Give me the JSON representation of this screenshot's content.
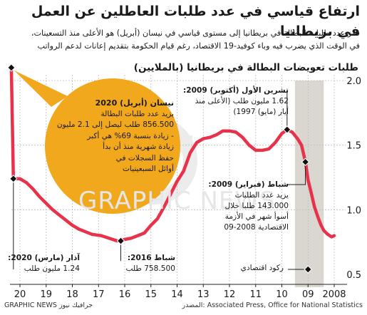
{
  "title": "ارتفاع قياسي في عدد طلبات العاطلين عن العمل في بريطانيا",
  "intro": [
    "قفز عدد طلبات البطالة في بريطانيا إلى مستوى قياسي في نيسان (أبريل) هو الأعلى منذ التسعينات،",
    "في الوقت الذي يضرب فيه وباء كوفيد-19 الاقتصاد، رغم قيام الحكومة بتقديم إعانات لدعم الرواتب"
  ],
  "subtitle": "طلبات تعويضات البطالة في بريطانيا (بالملايين)",
  "watermark": "GRAPHIC NEWS",
  "colors": {
    "line": "#e8314a",
    "bubble": "#f2a81d",
    "recession": "#d9d7d0",
    "grid": "#bdbdbd"
  },
  "annotations": {
    "apr2020": {
      "head": "نيسان (أبريل) 2020",
      "lines": [
        "يزيد عدد طلبات البطالة",
        "856.500 طلب ليصل إلى 2.1 مليون",
        "- زيادة بنسبة 69% هي أكبر",
        "زيادة شهرية منذ أن بدأ",
        "حفظ السجلات في",
        "أوائل السبعينيات"
      ]
    },
    "oct2009": {
      "head": "تشرين الأول (أكتوبر) 2009:",
      "lines": [
        "1.62 مليون طلب (الأعلى منذ",
        "أيار (مايو) 1997)"
      ]
    },
    "feb2009": {
      "head": "شباط (فبراير) 2009:",
      "lines": [
        "يزيد عدد الطلبات",
        "143.000 طلبا خلال",
        "أسوأ شهر في الأزمة",
        "الاقتصادية 2008-09"
      ]
    },
    "feb2016": {
      "head": "شباط 2016:",
      "lines": [
        "758.500 طلب"
      ]
    },
    "mar2020": {
      "head": "آذار (مارس) 2020:",
      "lines": [
        "1.24 مليون طلب"
      ]
    },
    "recession": "ركود اقتصادي"
  },
  "footer": {
    "source": "المصدر: Associated Press, Office for National Statistics",
    "credit": "GRAPHIC NEWS جرافيك نيوز"
  },
  "chart_data": {
    "type": "line",
    "title": "طلبات تعويضات البطالة في بريطانيا (بالملايين)",
    "x_axis": "year",
    "x_ticks": [
      "20",
      "19",
      "18",
      "17",
      "16",
      "15",
      "14",
      "13",
      "12",
      "11",
      "10",
      "09",
      "2008"
    ],
    "x_direction": "reversed (2020 on left, 2008 on right)",
    "ylim": [
      0.5,
      2.0
    ],
    "y_ticks": [
      "0.5",
      "1.0",
      "1.5",
      "2.0"
    ],
    "grid": "vertical dashed lines at years, horizontal dashed at 1.0 and 1.5",
    "recession_band": [
      "2008.4",
      "2009.5"
    ],
    "series": [
      {
        "points": [
          [
            2008.0,
            0.8
          ],
          [
            2008.1,
            0.79
          ],
          [
            2008.25,
            0.81
          ],
          [
            2008.4,
            0.84
          ],
          [
            2008.5,
            0.88
          ],
          [
            2008.6,
            0.93
          ],
          [
            2008.75,
            1.02
          ],
          [
            2008.9,
            1.15
          ],
          [
            2009.0,
            1.23
          ],
          [
            2009.1,
            1.37
          ],
          [
            2009.25,
            1.5
          ],
          [
            2009.4,
            1.55
          ],
          [
            2009.6,
            1.6
          ],
          [
            2009.8,
            1.62
          ],
          [
            2010.0,
            1.59
          ],
          [
            2010.25,
            1.52
          ],
          [
            2010.5,
            1.47
          ],
          [
            2010.75,
            1.46
          ],
          [
            2011.0,
            1.46
          ],
          [
            2011.25,
            1.5
          ],
          [
            2011.5,
            1.56
          ],
          [
            2011.75,
            1.6
          ],
          [
            2012.0,
            1.61
          ],
          [
            2012.25,
            1.61
          ],
          [
            2012.5,
            1.58
          ],
          [
            2012.75,
            1.56
          ],
          [
            2013.0,
            1.55
          ],
          [
            2013.25,
            1.52
          ],
          [
            2013.5,
            1.44
          ],
          [
            2013.75,
            1.3
          ],
          [
            2014.0,
            1.22
          ],
          [
            2014.25,
            1.12
          ],
          [
            2014.5,
            1.02
          ],
          [
            2014.75,
            0.93
          ],
          [
            2015.0,
            0.88
          ],
          [
            2015.25,
            0.82
          ],
          [
            2015.5,
            0.8
          ],
          [
            2015.75,
            0.78
          ],
          [
            2016.0,
            0.77
          ],
          [
            2016.15,
            0.759
          ],
          [
            2016.3,
            0.76
          ],
          [
            2016.6,
            0.78
          ],
          [
            2016.9,
            0.8
          ],
          [
            2017.25,
            0.81
          ],
          [
            2017.5,
            0.83
          ],
          [
            2017.75,
            0.85
          ],
          [
            2018.0,
            0.88
          ],
          [
            2018.25,
            0.92
          ],
          [
            2018.5,
            0.96
          ],
          [
            2018.75,
            1.0
          ],
          [
            2019.0,
            1.05
          ],
          [
            2019.25,
            1.1
          ],
          [
            2019.5,
            1.16
          ],
          [
            2019.75,
            1.21
          ],
          [
            2020.0,
            1.24
          ],
          [
            2020.25,
            1.24
          ],
          [
            2020.33,
            2.1
          ]
        ]
      }
    ],
    "markers": [
      {
        "label": "نيسان (أبريل) 2020",
        "x": 2020.33,
        "y": 2.1
      },
      {
        "label": "آذار (مارس) 2020",
        "x": 2020.25,
        "y": 1.24
      },
      {
        "label": "شباط 2016",
        "x": 2016.15,
        "y": 0.759
      },
      {
        "label": "تشرين الأول (أكتوبر) 2009",
        "x": 2009.8,
        "y": 1.62
      },
      {
        "label": "شباط (فبراير) 2009",
        "x": 2009.1,
        "y": 1.37
      },
      {
        "label": "ركود اقتصادي",
        "x": 2009.0,
        "y": 0.5
      }
    ]
  }
}
